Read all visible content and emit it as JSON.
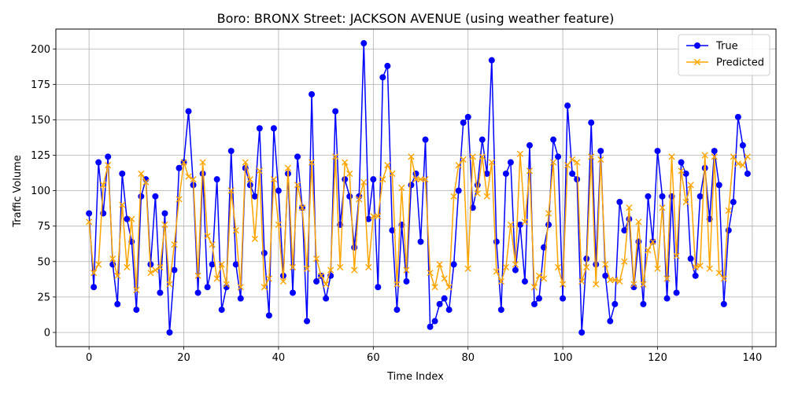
{
  "chart_data": {
    "type": "line",
    "title": "Boro: BRONX Street: JACKSON AVENUE (using weather feature)",
    "xlabel": "Time Index",
    "ylabel": "Traffic Volume",
    "xlim": [
      -7,
      145
    ],
    "ylim": [
      -10,
      214
    ],
    "xticks": [
      0,
      20,
      40,
      60,
      80,
      100,
      120,
      140
    ],
    "yticks": [
      0,
      25,
      50,
      75,
      100,
      125,
      150,
      175,
      200
    ],
    "grid": true,
    "legend_position": "top-right",
    "series": [
      {
        "name": "True",
        "color": "#0000ff",
        "marker": "circle",
        "values": [
          84,
          32,
          120,
          84,
          124,
          48,
          20,
          112,
          80,
          64,
          16,
          96,
          108,
          48,
          96,
          28,
          84,
          0,
          44,
          116,
          120,
          156,
          104,
          28,
          112,
          32,
          48,
          108,
          16,
          32,
          128,
          48,
          24,
          116,
          104,
          96,
          144,
          56,
          12,
          144,
          100,
          40,
          112,
          28,
          124,
          88,
          8,
          168,
          36,
          40,
          24,
          40,
          156,
          76,
          108,
          96,
          60,
          96,
          204,
          80,
          108,
          32,
          180,
          188,
          72,
          16,
          76,
          36,
          104,
          112,
          64,
          136,
          4,
          8,
          20,
          24,
          16,
          48,
          100,
          148,
          152,
          88,
          104,
          136,
          112,
          192,
          64,
          16,
          112,
          120,
          44,
          76,
          36,
          132,
          20,
          24,
          60,
          76,
          136,
          124,
          24,
          160,
          112,
          108,
          0,
          52,
          148,
          48,
          128,
          40,
          8,
          20,
          92,
          72,
          80,
          32,
          64,
          20,
          96,
          64,
          128,
          96,
          24,
          96,
          28,
          120,
          112,
          52,
          40,
          96,
          116,
          80,
          128,
          104,
          20,
          72,
          92,
          152,
          132,
          112
        ]
      },
      {
        "name": "Predicted",
        "color": "#ffa500",
        "marker": "x",
        "values": [
          78,
          42,
          48,
          104,
          118,
          52,
          40,
          90,
          46,
          80,
          30,
          112,
          106,
          42,
          44,
          46,
          76,
          34,
          62,
          94,
          120,
          110,
          108,
          40,
          120,
          68,
          62,
          38,
          48,
          34,
          100,
          72,
          32,
          120,
          108,
          66,
          114,
          32,
          38,
          108,
          76,
          36,
          116,
          46,
          104,
          88,
          45,
          120,
          52,
          40,
          34,
          44,
          124,
          46,
          120,
          112,
          44,
          94,
          106,
          46,
          82,
          82,
          108,
          118,
          112,
          34,
          102,
          44,
          124,
          108,
          108,
          108,
          42,
          32,
          48,
          38,
          32,
          96,
          118,
          122,
          45,
          124,
          98,
          124,
          96,
          120,
          43,
          36,
          46,
          76,
          48,
          126,
          78,
          114,
          32,
          40,
          38,
          84,
          120,
          46,
          34,
          118,
          122,
          120,
          36,
          46,
          124,
          34,
          122,
          48,
          37,
          37,
          36,
          50,
          88,
          34,
          78,
          34,
          58,
          64,
          45,
          88,
          38,
          124,
          54,
          114,
          92,
          104,
          46,
          47,
          125,
          45,
          124,
          42,
          38,
          86,
          124,
          119,
          118,
          124
        ]
      }
    ]
  }
}
